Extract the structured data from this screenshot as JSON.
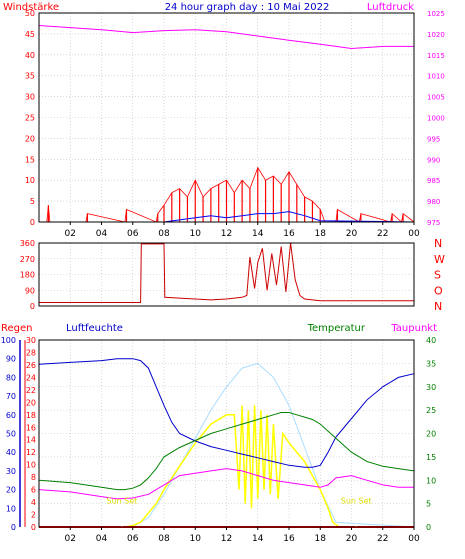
{
  "title": "24 hour graph day : 10 Mai 2022",
  "x_ticks": [
    "02",
    "04",
    "06",
    "08",
    "10",
    "12",
    "14",
    "16",
    "18",
    "20",
    "22",
    "00"
  ],
  "colors": {
    "wind": "#ff0000",
    "gust": "#ff0000",
    "wind_avg": "#0000ff",
    "pressure": "#ff00ff",
    "direction": "#cc0000",
    "humidity": "#0000cc",
    "temperature": "#008000",
    "dewpoint": "#ff00ff",
    "solar": "#ffff00",
    "uv": "#aaddff",
    "rain": "#ff0000",
    "grid": "#c0c0c0",
    "background": "#ffffff"
  },
  "chart_data": [
    {
      "type": "line",
      "name": "wind-pressure",
      "left_label": "Windstärke",
      "right_label": "Luftdruck",
      "y_left_ticks": [
        "0",
        "5",
        "10",
        "15",
        "20",
        "25",
        "30",
        "35",
        "40",
        "45",
        "50"
      ],
      "y_right_ticks": [
        "975",
        "980",
        "985",
        "990",
        "995",
        "1000",
        "1005",
        "1010",
        "1015",
        "1020",
        "1025"
      ],
      "ylim_left": [
        0,
        50
      ],
      "ylim_right": [
        975,
        1025
      ],
      "xlim_hours": [
        0,
        24
      ],
      "pressure": {
        "x": [
          0,
          2,
          4,
          6,
          8,
          10,
          12,
          14,
          16,
          18,
          20,
          22,
          24
        ],
        "y": [
          1022,
          1021.5,
          1021,
          1020.3,
          1020.8,
          1021,
          1020.5,
          1019.5,
          1018.5,
          1017.5,
          1016.5,
          1017,
          1017
        ]
      },
      "gust": {
        "x": [
          0,
          0.5,
          0.6,
          0.7,
          3,
          3.1,
          5.5,
          5.6,
          7.5,
          7.6,
          8,
          8.5,
          9,
          9.5,
          10,
          10.5,
          11,
          11.5,
          12,
          12.5,
          13,
          13.5,
          14,
          14.5,
          15,
          15.5,
          16,
          16.5,
          17,
          17.5,
          18,
          18.3,
          19,
          19.1,
          20.5,
          20.6,
          22.5,
          22.6,
          23.2,
          23.3,
          24
        ],
        "y": [
          0,
          0,
          4,
          0,
          0,
          2,
          0,
          3,
          0,
          2,
          4,
          7,
          8,
          6,
          10,
          6,
          8,
          9,
          10,
          7,
          10,
          8,
          13,
          10,
          11,
          9,
          12,
          9,
          6,
          5,
          3,
          0,
          0,
          3,
          0,
          2,
          0,
          2,
          0,
          2,
          0
        ]
      },
      "wind_avg": {
        "x": [
          0,
          8,
          9,
          10,
          11,
          12,
          13,
          14,
          15,
          16,
          17,
          18,
          24
        ],
        "y": [
          0,
          0,
          0.5,
          1,
          1.5,
          1,
          1.5,
          2,
          2,
          2.5,
          1.5,
          0.3,
          0
        ]
      }
    },
    {
      "type": "line",
      "name": "wind-direction",
      "right_labels": [
        "N",
        "W",
        "S",
        "O",
        "N"
      ],
      "y_ticks": [
        "0",
        "90",
        "180",
        "270",
        "360"
      ],
      "ylim": [
        0,
        360
      ],
      "xlim_hours": [
        0,
        24
      ],
      "direction": {
        "x": [
          0,
          6.5,
          6.55,
          8.0,
          8.05,
          9,
          10,
          11,
          12,
          13,
          13.3,
          13.5,
          13.8,
          14.0,
          14.3,
          14.6,
          14.9,
          15.2,
          15.5,
          15.8,
          16.1,
          16.4,
          16.7,
          17,
          18,
          24
        ],
        "y": [
          20,
          20,
          355,
          355,
          50,
          45,
          40,
          35,
          40,
          50,
          60,
          280,
          100,
          250,
          330,
          90,
          300,
          120,
          340,
          80,
          360,
          150,
          60,
          40,
          30,
          30
        ]
      }
    },
    {
      "type": "line",
      "name": "humidity-temperature",
      "labels": {
        "rain": "Regen",
        "humidity": "Luftfeuchte",
        "temperature": "Temperatur",
        "dewpoint": "Taupunkt"
      },
      "y_humidity_ticks": [
        "0",
        "10",
        "20",
        "30",
        "40",
        "50",
        "60",
        "70",
        "80",
        "90",
        "100"
      ],
      "y_rain_ticks": [
        "0",
        "2",
        "4",
        "6",
        "8",
        "10",
        "12",
        "14",
        "16",
        "18",
        "20",
        "22",
        "24",
        "26",
        "28",
        "30"
      ],
      "y_temp_ticks": [
        "0",
        "5",
        "10",
        "15",
        "20",
        "25",
        "30",
        "35",
        "40"
      ],
      "ylim_humidity": [
        0,
        100
      ],
      "ylim_temperature": [
        0,
        40
      ],
      "xlim_hours": [
        0,
        24
      ],
      "humidity": {
        "x": [
          0,
          2,
          4,
          5,
          6,
          6.5,
          7,
          7.5,
          8,
          8.5,
          9,
          10,
          11,
          12,
          13,
          14,
          15,
          16,
          17,
          17.5,
          18,
          18.5,
          19,
          20,
          21,
          22,
          23,
          24
        ],
        "y": [
          87,
          88,
          89,
          90,
          90,
          89,
          85,
          75,
          65,
          56,
          50,
          46,
          43,
          41,
          39,
          37,
          35,
          33,
          32,
          32,
          33,
          40,
          48,
          58,
          68,
          75,
          80,
          82
        ]
      },
      "temperature": {
        "x": [
          0,
          2,
          4,
          5,
          5.5,
          6,
          6.5,
          7,
          7.5,
          8,
          9,
          10,
          11,
          12,
          13,
          14,
          15,
          15.5,
          16,
          16.5,
          17,
          17.5,
          18,
          19,
          20,
          21,
          22,
          23,
          24
        ],
        "y": [
          10,
          9.5,
          8.5,
          8,
          8,
          8.3,
          9,
          10.5,
          12.5,
          15,
          17,
          18.5,
          20,
          21,
          22,
          23,
          24,
          24.5,
          24.5,
          24,
          23.5,
          23,
          22,
          19,
          16,
          14,
          13,
          12.5,
          12
        ]
      },
      "dewpoint": {
        "x": [
          0,
          2,
          4,
          5,
          6,
          7,
          8,
          9,
          10,
          11,
          12,
          13,
          14,
          15,
          16,
          17,
          18,
          18.5,
          19,
          20,
          21,
          22,
          23,
          24
        ],
        "y": [
          8,
          7.5,
          6.5,
          6,
          6.2,
          7,
          9,
          11,
          11.5,
          12,
          12.5,
          12,
          11,
          10,
          9.5,
          9,
          8.5,
          9,
          10.5,
          11,
          10,
          9,
          8.5,
          8.5
        ]
      },
      "solar": {
        "x": [
          0,
          5.5,
          6.0,
          6.5,
          7.0,
          7.5,
          8,
          9,
          10,
          11,
          12,
          12.5,
          12.8,
          13.0,
          13.2,
          13.4,
          13.6,
          13.8,
          14.0,
          14.2,
          14.4,
          14.6,
          14.8,
          15.0,
          15.3,
          15.6,
          16,
          17,
          17.5,
          18,
          18.5,
          18.8,
          19.2,
          24
        ],
        "y": [
          0,
          0,
          0.3,
          1,
          3,
          5,
          8,
          13,
          18,
          22,
          24,
          24,
          8,
          26,
          5,
          25,
          4,
          26,
          6,
          25,
          8,
          24,
          7,
          22,
          6,
          20,
          18,
          14,
          11,
          8,
          4,
          1,
          0,
          0
        ]
      },
      "uv": {
        "x": [
          0,
          6,
          7,
          8,
          9,
          10,
          11,
          12,
          13,
          14,
          15,
          16,
          17,
          18,
          19,
          24
        ],
        "y": [
          0,
          0,
          2,
          7,
          13,
          19,
          25,
          30,
          34,
          35,
          32,
          26,
          17,
          8,
          1,
          0
        ]
      },
      "rain": {
        "x": [
          0,
          24
        ],
        "y": [
          0,
          0
        ]
      },
      "annotations": [
        {
          "text": "Sun Set",
          "hour": 5.3,
          "value": 5
        },
        {
          "text": "Sun Set",
          "hour": 20.3,
          "value": 5
        }
      ]
    }
  ]
}
